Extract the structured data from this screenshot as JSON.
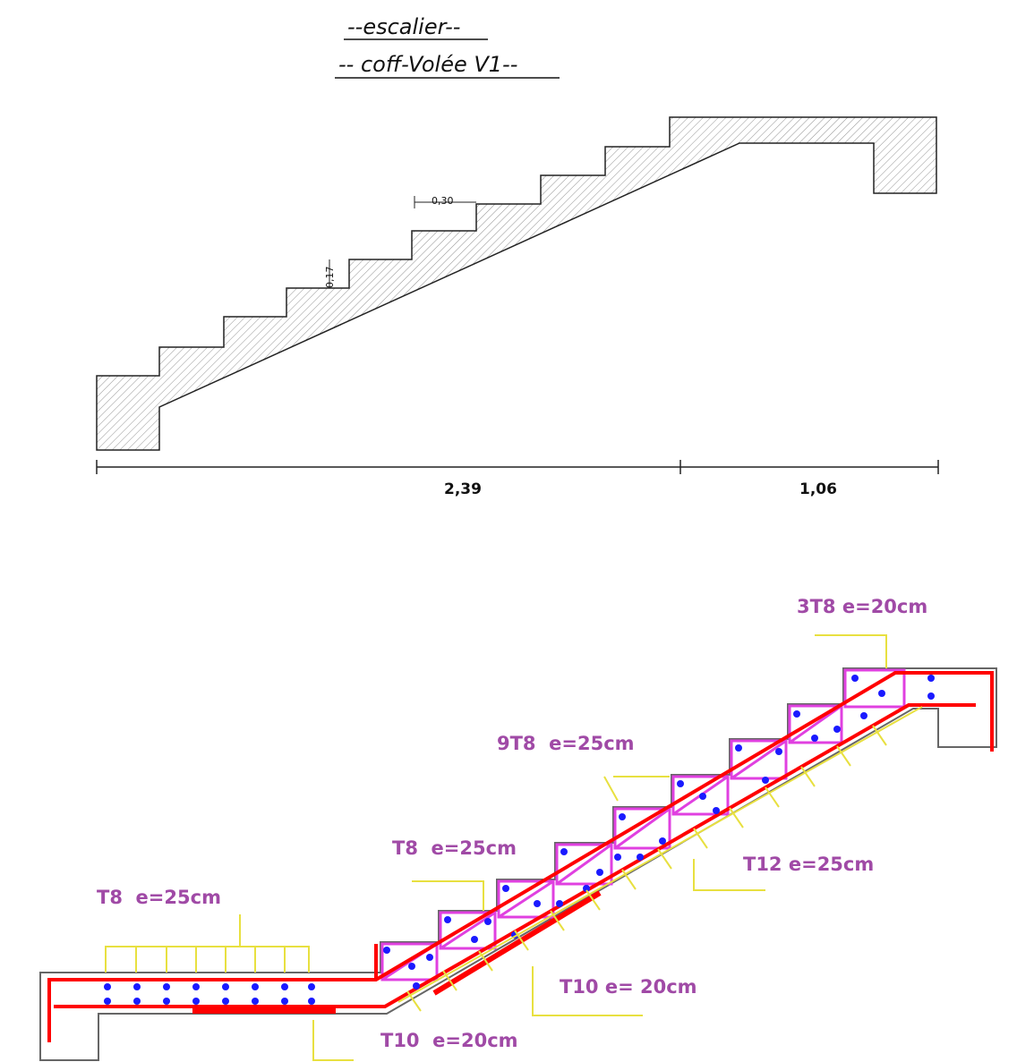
{
  "formwork": {
    "title": "--escalier--",
    "subtitle": "-- coff-Volée V1--",
    "tread": "0,30",
    "riser": "0,17",
    "run": "2,39",
    "landing": "1,06"
  },
  "reinforcement": {
    "labels": [
      "3T8 e=20cm",
      "9T8  e=25cm",
      "T8  e=25cm",
      "T12 e=25cm",
      "T8  e=25cm",
      "T10 e= 20cm",
      "T10  e=20cm"
    ]
  }
}
